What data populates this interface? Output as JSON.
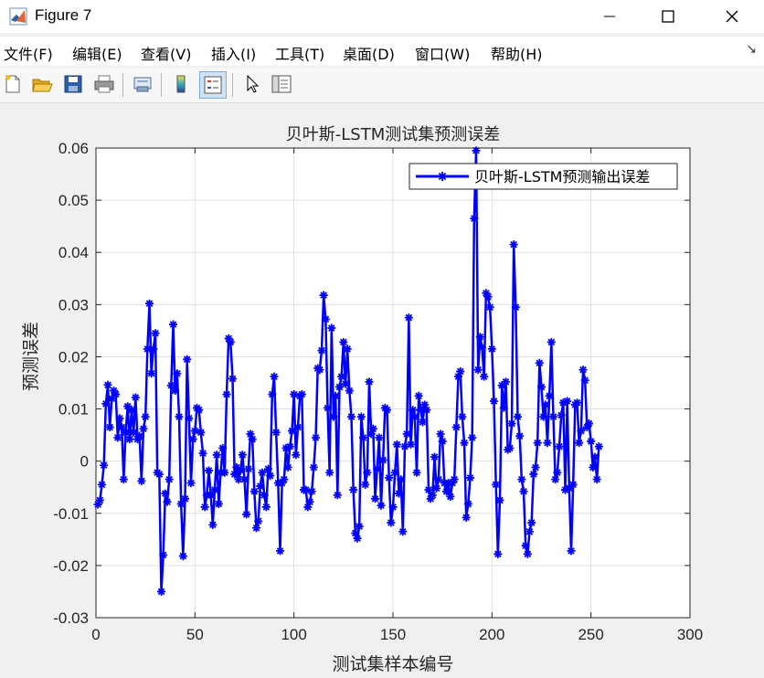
{
  "window": {
    "title": "Figure 7"
  },
  "menu": [
    "文件(F)",
    "编辑(E)",
    "查看(V)",
    "插入(I)",
    "工具(T)",
    "桌面(D)",
    "窗口(W)",
    "帮助(H)"
  ],
  "toolbar": {
    "icons": [
      "new-figure-icon",
      "open-icon",
      "save-icon",
      "print-icon",
      "link-icon",
      "colorbar-icon",
      "legend-icon",
      "pointer-icon",
      "property-editor-icon"
    ]
  },
  "colors": {
    "series": "#0000ff",
    "grid": "#dfdfdf",
    "axes_bg": "#ffffff",
    "figure_bg": "#f0f0f0"
  },
  "chart_data": {
    "type": "line",
    "title": "贝叶斯-LSTM测试集预测误差",
    "xlabel": "测试集样本编号",
    "ylabel": "预测误差",
    "xlim": [
      0,
      300
    ],
    "ylim": [
      -0.03,
      0.06
    ],
    "xticks": [
      "0",
      "50",
      "100",
      "150",
      "200",
      "250",
      "300"
    ],
    "yticks": [
      "-0.03",
      "-0.02",
      "-0.01",
      "0",
      "0.01",
      "0.02",
      "0.03",
      "0.04",
      "0.05",
      "0.06"
    ],
    "grid": true,
    "legend_position": "top-right",
    "marker": "asterisk",
    "series": [
      {
        "name": "贝叶斯-LSTM预测输出误差",
        "x_start": 1,
        "values": [
          -0.0083,
          -0.0075,
          -0.0045,
          -0.0008,
          0.011,
          0.0146,
          0.0065,
          0.012,
          0.0135,
          0.0128,
          0.0045,
          0.0082,
          0.0065,
          -0.0035,
          0.0055,
          0.0105,
          0.0042,
          0.0098,
          0.0055,
          0.0122,
          0.0042,
          0.0048,
          -0.0038,
          0.0062,
          0.0085,
          0.0215,
          0.0302,
          0.0168,
          0.0215,
          0.0245,
          -0.0022,
          -0.0025,
          -0.025,
          -0.018,
          -0.0062,
          -0.0078,
          -0.0035,
          0.0145,
          0.0262,
          0.0135,
          0.0168,
          0.0085,
          -0.0082,
          -0.0182,
          -0.0072,
          0.0195,
          0.0082,
          -0.0042,
          0.0042,
          0.0058,
          0.0102,
          0.0098,
          0.0055,
          0.0015,
          -0.0088,
          -0.0065,
          -0.0018,
          -0.0065,
          -0.0122,
          -0.0055,
          0.0012,
          -0.0082,
          -0.0022,
          0.0025,
          -0.0022,
          0.0128,
          0.0235,
          0.0228,
          0.0158,
          -0.0025,
          -0.0012,
          -0.0035,
          -0.0018,
          0.0012,
          -0.0035,
          -0.0102,
          -0.0015,
          0.0052,
          0.0042,
          -0.0058,
          -0.0128,
          -0.0115,
          -0.0048,
          -0.0022,
          -0.0065,
          -0.0088,
          -0.0015,
          -0.0028,
          0.0128,
          0.0162,
          0.0055,
          -0.0042,
          -0.0172,
          -0.0042,
          -0.0035,
          0.0025,
          -0.0012,
          0.0028,
          0.0058,
          0.0128,
          0.0012,
          0.0065,
          0.0125,
          0.0128,
          -0.0055,
          -0.0055,
          -0.0088,
          -0.0078,
          -0.0058,
          -0.0012,
          0.0045,
          0.0178,
          0.0175,
          0.0212,
          0.0318,
          0.0272,
          0.0102,
          -0.0022,
          0.0255,
          0.0085,
          0.0125,
          -0.0065,
          0.0142,
          0.0162,
          0.0228,
          0.0148,
          0.0215,
          0.0135,
          0.0085,
          -0.0055,
          -0.0138,
          -0.0148,
          -0.0125,
          0.0085,
          0.0045,
          -0.0045,
          -0.0022,
          0.0152,
          0.0052,
          0.0062,
          -0.0072,
          -0.0015,
          0.0045,
          -0.0085,
          0.0002,
          0.0102,
          0.0098,
          -0.0032,
          -0.0118,
          -0.0088,
          -0.0022,
          0.0032,
          -0.0062,
          -0.0035,
          -0.0135,
          0.0028,
          0.0052,
          0.0275,
          0.0032,
          0.0098,
          0.0085,
          -0.0022,
          0.0125,
          0.0098,
          0.0075,
          0.0108,
          0.0098,
          -0.0055,
          -0.0072,
          -0.0065,
          0.0008,
          -0.0052,
          -0.0035,
          0.0052,
          0.0038,
          -0.0042,
          -0.0058,
          -0.0042,
          -0.0068,
          -0.0042,
          -0.0035,
          0.0065,
          0.0162,
          0.0172,
          0.0085,
          0.0035,
          -0.0108,
          -0.0082,
          -0.0032,
          0.0045,
          0.0465,
          0.0595,
          0.0175,
          0.0238,
          0.0218,
          0.0162,
          0.0322,
          0.0315,
          0.0295,
          0.0215,
          0.0115,
          -0.0045,
          -0.0178,
          -0.0075,
          0.0145,
          0.0102,
          0.0152,
          0.0022,
          0.0025,
          0.0072,
          0.0415,
          0.0295,
          0.0085,
          0.0048,
          -0.0035,
          -0.0058,
          -0.0162,
          -0.0178,
          -0.0135,
          -0.0118,
          -0.0025,
          -0.0012,
          0.0035,
          0.0188,
          0.0142,
          0.0085,
          0.0108,
          0.0035,
          0.0125,
          0.0228,
          0.0085,
          -0.0035,
          -0.0022,
          0.0028,
          0.0088,
          0.0112,
          -0.0055,
          0.0115,
          -0.0052,
          -0.0172,
          -0.0045,
          0.0108,
          0.0112,
          0.0035,
          0.0058,
          0.0175,
          0.0155,
          0.0065,
          0.0072,
          0.0038,
          -0.0012,
          0.0008,
          -0.0035,
          0.0028
        ]
      }
    ]
  }
}
